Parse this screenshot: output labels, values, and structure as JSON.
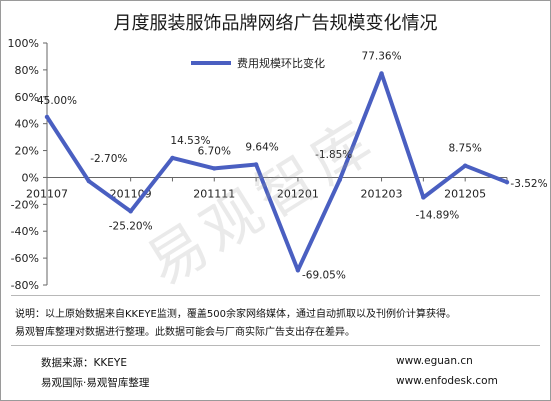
{
  "chart_data": {
    "type": "line",
    "title": "月度服装服饰品牌网络广告规模变化情况",
    "categories": [
      "201107",
      "201108",
      "201109",
      "201110",
      "201111",
      "201112",
      "201201",
      "201202",
      "201203",
      "201204",
      "201205",
      "201206"
    ],
    "xtick_labels": [
      "201107",
      "201109",
      "201111",
      "201201",
      "201203",
      "201205"
    ],
    "series": [
      {
        "name": "费用规模环比变化",
        "color": "#4a5fc1",
        "values": [
          45.0,
          -2.7,
          -25.2,
          14.53,
          6.7,
          9.64,
          -69.05,
          -1.85,
          77.36,
          -14.89,
          8.75,
          -3.52
        ],
        "labels": [
          "45.00%",
          "-2.70%",
          "-25.20%",
          "14.53%",
          "6.70%",
          "9.64%",
          "-69.05%",
          "-1.85%",
          "77.36%",
          "-14.89%",
          "8.75%",
          "-3.52%"
        ]
      }
    ],
    "ylim": [
      -80,
      100
    ],
    "yticks": [
      "100%",
      "80%",
      "60%",
      "40%",
      "20%",
      "0%",
      "-20%",
      "-40%",
      "-60%",
      "-80%"
    ],
    "grid": false,
    "legend": "top-center",
    "xlabel": "",
    "ylabel": ""
  },
  "watermark": "易观智库",
  "notes": [
    "说明：以上原始数据来自KKEYE监测，覆盖500余家网络媒体，通过自动抓取以及刊例价计算获得。",
    "易观智库整理对数据进行整理。此数据可能会与厂商实际广告支出存在差异。"
  ],
  "source_left": [
    "数据来源：KKEYE",
    "易观国际·易观智库整理"
  ],
  "source_right": [
    "www.eguan.cn",
    "www.enfodesk.com"
  ]
}
